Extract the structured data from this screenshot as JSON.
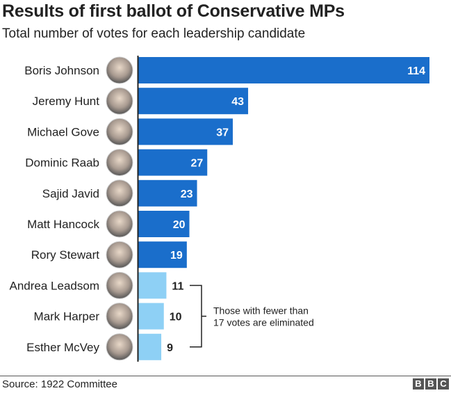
{
  "chart_data": {
    "type": "bar",
    "orientation": "horizontal",
    "title": "Results of first ballot of Conservative MPs",
    "subtitle": "Total number of votes for each leadership candidate",
    "categories": [
      "Boris Johnson",
      "Jeremy Hunt",
      "Michael Gove",
      "Dominic Raab",
      "Sajid Javid",
      "Matt Hancock",
      "Rory Stewart",
      "Andrea Leadsom",
      "Mark Harper",
      "Esther McVey"
    ],
    "values": [
      114,
      43,
      37,
      27,
      23,
      20,
      19,
      11,
      10,
      9
    ],
    "eliminated": [
      false,
      false,
      false,
      false,
      false,
      false,
      false,
      true,
      true,
      true
    ],
    "colors": {
      "advanced": "#1a6ecb",
      "eliminated": "#8ed0f5"
    },
    "annotation": [
      "Those with fewer than",
      "17 votes are eliminated"
    ],
    "xlim": [
      0,
      114
    ],
    "grid": false
  },
  "footer": {
    "source": "Source: 1922 Committee",
    "logo": [
      "B",
      "B",
      "C"
    ]
  }
}
